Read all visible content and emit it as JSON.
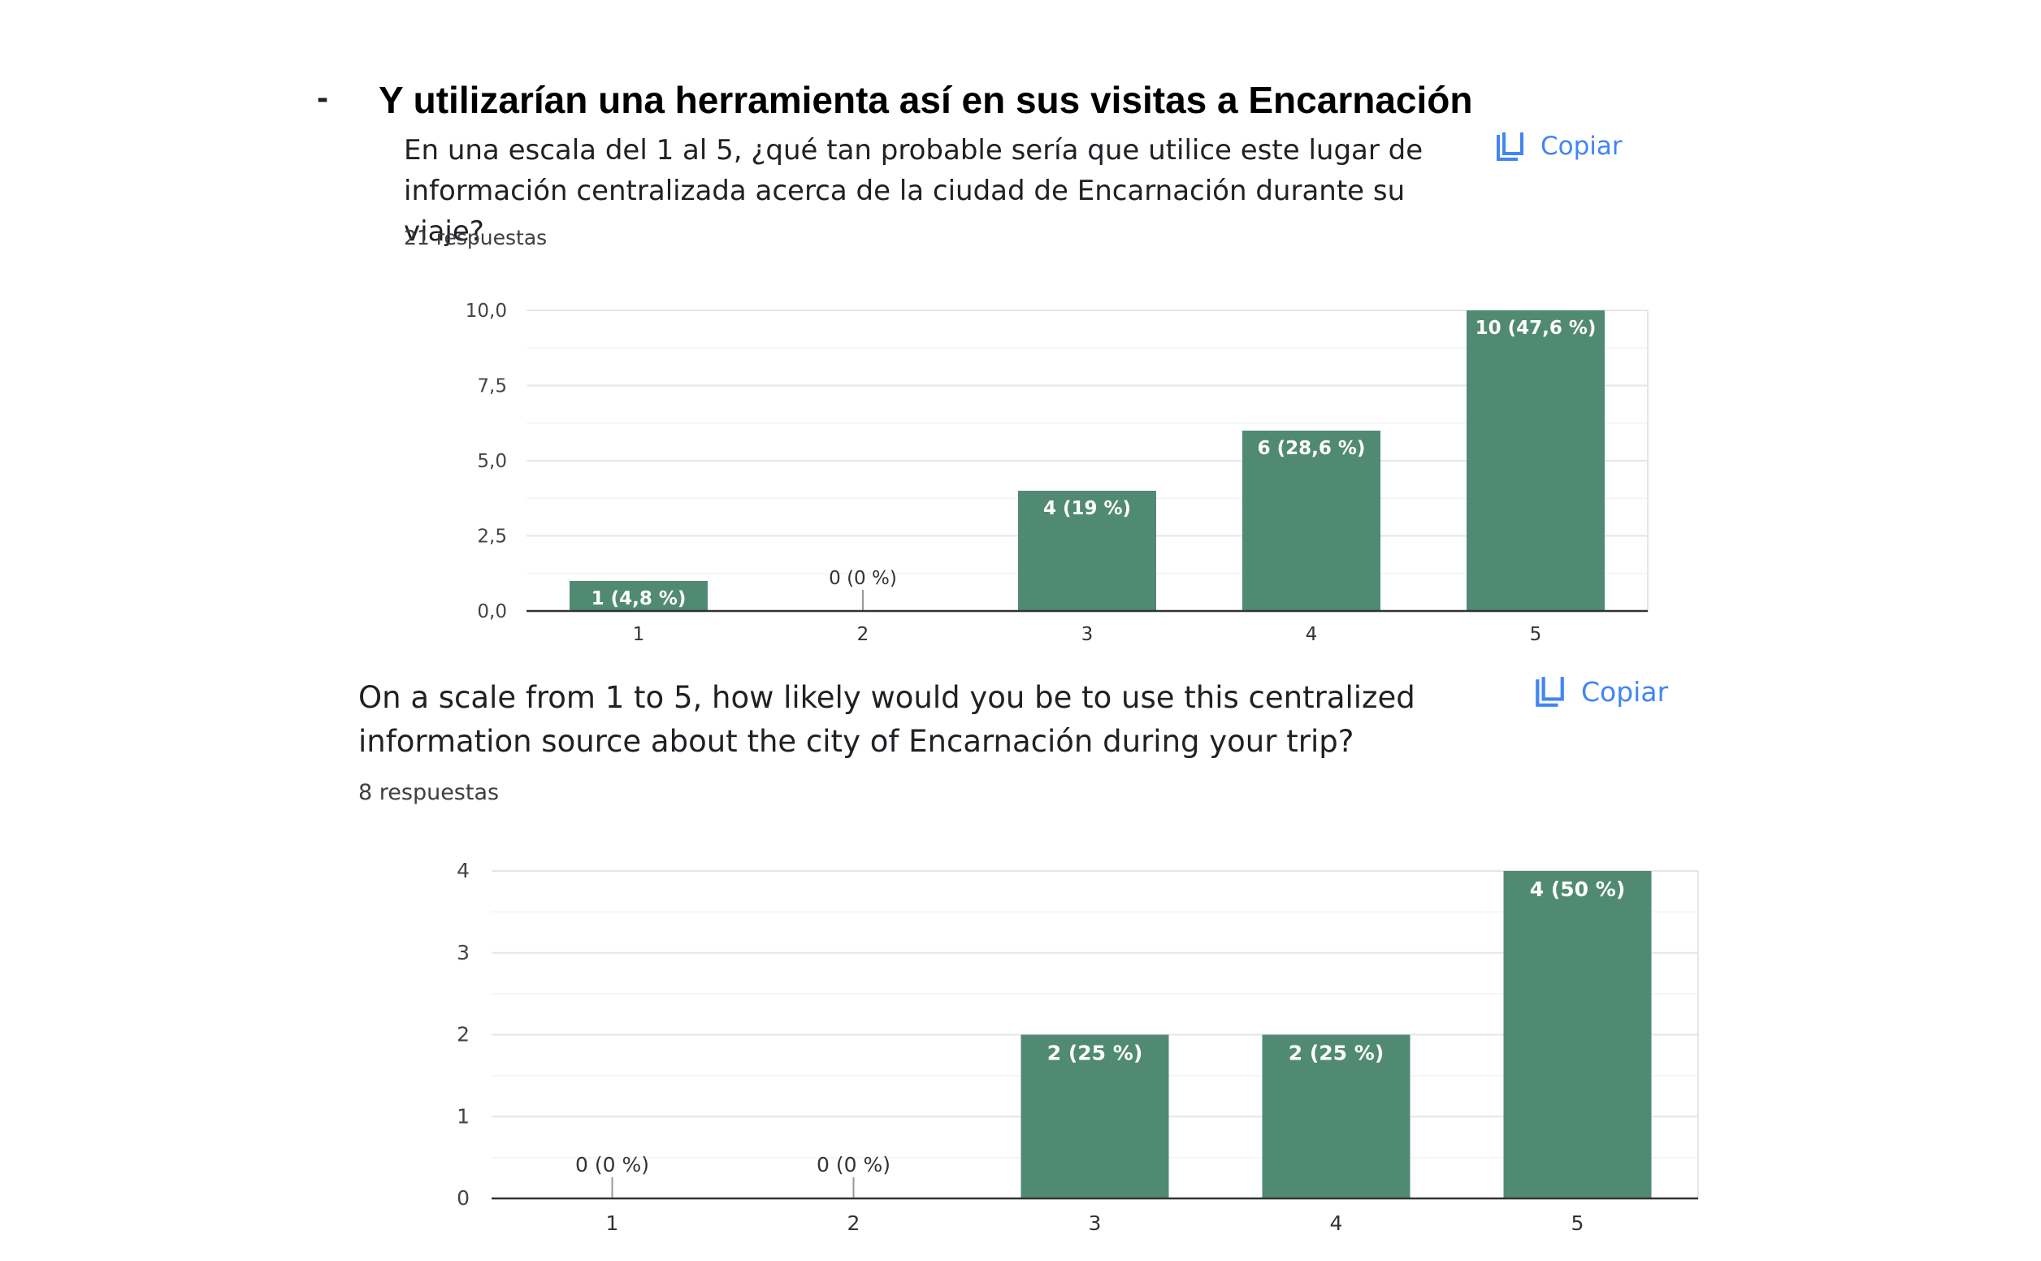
{
  "section": {
    "bullet": "-",
    "heading": "Y utilizarían una herramienta así en sus visitas a Encarnación"
  },
  "question1": {
    "text": "En una escala del 1 al 5, ¿qué tan probable sería que utilice este lugar de información centralizada acerca de la ciudad de Encarnación durante su viaje?",
    "responses": "21 respuestas",
    "copy_label": "Copiar",
    "copy_icon": "copy-icon"
  },
  "question2": {
    "text": "On a scale from 1 to 5, how likely would you be to use this centralized information source about the city of Encarnación during your trip?",
    "responses": "8 respuestas",
    "copy_label": "Copiar",
    "copy_icon": "copy-icon"
  },
  "colors": {
    "bar": "#518a73",
    "axis": "#333333",
    "grid": "#e6e6e6",
    "minor_grid": "#f3f3f3",
    "link": "#4285f4"
  },
  "chart_data": [
    {
      "type": "bar",
      "categories": [
        "1",
        "2",
        "3",
        "4",
        "5"
      ],
      "values": [
        1,
        0,
        4,
        6,
        10
      ],
      "labels": [
        "1 (4,8 %)",
        "0 (0 %)",
        "4 (19 %)",
        "6 (28,6 %)",
        "10 (47,6 %)"
      ],
      "yticks": [
        "0,0",
        "2,5",
        "5,0",
        "7,5",
        "10,0"
      ],
      "ylim": [
        0,
        10
      ],
      "grid": true
    },
    {
      "type": "bar",
      "categories": [
        "1",
        "2",
        "3",
        "4",
        "5"
      ],
      "values": [
        0,
        0,
        2,
        2,
        4
      ],
      "labels": [
        "0 (0 %)",
        "0 (0 %)",
        "2 (25 %)",
        "2 (25 %)",
        "4 (50 %)"
      ],
      "yticks": [
        "0",
        "1",
        "2",
        "3",
        "4"
      ],
      "ylim": [
        0,
        4
      ],
      "grid": true
    }
  ]
}
